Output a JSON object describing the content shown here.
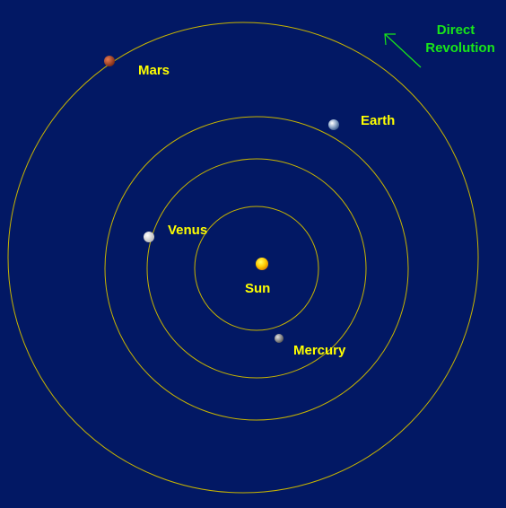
{
  "diagram": {
    "background_color": "#021864",
    "orbit_color": "#c8b400",
    "label_color": "#ffff00",
    "direction_color": "#19e619",
    "direction_label": [
      "Direct",
      "Revolution"
    ],
    "bodies": {
      "sun": {
        "label": "Sun",
        "color": "#ffcc00"
      },
      "mercury": {
        "label": "Mercury",
        "color": "#9a9a9a"
      },
      "venus": {
        "label": "Venus",
        "color": "#f4f4f4"
      },
      "earth": {
        "label": "Earth",
        "color": "#8fa8c8"
      },
      "mars": {
        "label": "Mars",
        "color": "#b8482a"
      }
    }
  }
}
